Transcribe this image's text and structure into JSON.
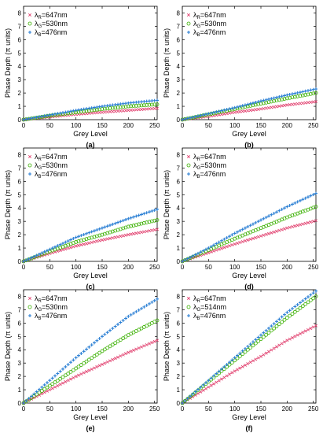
{
  "colors": {
    "red": "#e03a6a",
    "green": "#3ab000",
    "blue": "#2a7fd4"
  },
  "chart_data": [
    {
      "type": "scatter",
      "panel_label": "(a)",
      "xlabel": "Grey Level",
      "ylabel": "Phase Depth (π units)",
      "xlim": [
        0,
        255
      ],
      "ylim": [
        0,
        8.5
      ],
      "xticks": [
        0,
        50,
        100,
        150,
        200,
        250
      ],
      "yticks": [
        0,
        1,
        2,
        3,
        4,
        5,
        6,
        7,
        8
      ],
      "legend": "top-left",
      "series": [
        {
          "label_html": "λ<sub>R</sub>=647nm",
          "lambda": "λ",
          "sub": "R",
          "rest": "=647nm",
          "marker": "x",
          "color": "#e03a6a",
          "x": [
            0,
            50,
            100,
            150,
            200,
            255
          ],
          "y": [
            0,
            0.2,
            0.4,
            0.55,
            0.7,
            0.85
          ]
        },
        {
          "lambda": "λ",
          "sub": "G",
          "rest": "=530nm",
          "marker": "o",
          "color": "#3ab000",
          "x": [
            0,
            50,
            100,
            150,
            200,
            255
          ],
          "y": [
            0,
            0.3,
            0.55,
            0.8,
            1.0,
            1.15
          ]
        },
        {
          "lambda": "λ",
          "sub": "B",
          "rest": "=476nm",
          "marker": "+",
          "color": "#2a7fd4",
          "x": [
            0,
            50,
            100,
            150,
            200,
            255
          ],
          "y": [
            0,
            0.35,
            0.7,
            1.0,
            1.25,
            1.45
          ]
        }
      ]
    },
    {
      "type": "scatter",
      "panel_label": "(b)",
      "xlabel": "Grey Level",
      "ylabel": "Phase Depth (π units)",
      "xlim": [
        0,
        255
      ],
      "ylim": [
        0,
        8.5
      ],
      "xticks": [
        0,
        50,
        100,
        150,
        200,
        250
      ],
      "yticks": [
        0,
        1,
        2,
        3,
        4,
        5,
        6,
        7,
        8
      ],
      "legend": "top-left",
      "series": [
        {
          "lambda": "λ",
          "sub": "R",
          "rest": "=647nm",
          "marker": "x",
          "color": "#e03a6a",
          "x": [
            0,
            50,
            100,
            150,
            200,
            255
          ],
          "y": [
            0,
            0.25,
            0.55,
            0.8,
            1.1,
            1.35
          ]
        },
        {
          "lambda": "λ",
          "sub": "G",
          "rest": "=530nm",
          "marker": "o",
          "color": "#3ab000",
          "x": [
            0,
            50,
            100,
            150,
            200,
            255
          ],
          "y": [
            0,
            0.4,
            0.8,
            1.2,
            1.6,
            2.0
          ]
        },
        {
          "lambda": "λ",
          "sub": "B",
          "rest": "=476nm",
          "marker": "+",
          "color": "#2a7fd4",
          "x": [
            0,
            50,
            100,
            150,
            200,
            255
          ],
          "y": [
            0,
            0.45,
            0.9,
            1.4,
            1.85,
            2.3
          ]
        }
      ]
    },
    {
      "type": "scatter",
      "panel_label": "(c)",
      "xlabel": "Grey Level",
      "ylabel": "Phase Depth (π units)",
      "xlim": [
        0,
        255
      ],
      "ylim": [
        0,
        8.5
      ],
      "xticks": [
        0,
        50,
        100,
        150,
        200,
        250
      ],
      "yticks": [
        0,
        1,
        2,
        3,
        4,
        5,
        6,
        7,
        8
      ],
      "legend": "top-left",
      "series": [
        {
          "lambda": "λ",
          "sub": "R",
          "rest": "=647nm",
          "marker": "x",
          "color": "#e03a6a",
          "x": [
            0,
            50,
            100,
            150,
            200,
            255
          ],
          "y": [
            0,
            0.6,
            1.15,
            1.6,
            2.0,
            2.4
          ]
        },
        {
          "lambda": "λ",
          "sub": "G",
          "rest": "=530nm",
          "marker": "o",
          "color": "#3ab000",
          "x": [
            0,
            50,
            100,
            150,
            200,
            255
          ],
          "y": [
            0,
            0.75,
            1.45,
            2.0,
            2.6,
            3.1
          ]
        },
        {
          "lambda": "λ",
          "sub": "B",
          "rest": "=476nm",
          "marker": "+",
          "color": "#2a7fd4",
          "x": [
            0,
            50,
            100,
            150,
            200,
            255
          ],
          "y": [
            0,
            0.9,
            1.8,
            2.5,
            3.2,
            3.9
          ]
        }
      ]
    },
    {
      "type": "scatter",
      "panel_label": "(d)",
      "xlabel": "Grey Level",
      "ylabel": "Phase Depth (π units)",
      "xlim": [
        0,
        255
      ],
      "ylim": [
        0,
        8.5
      ],
      "xticks": [
        0,
        50,
        100,
        150,
        200,
        250
      ],
      "yticks": [
        0,
        1,
        2,
        3,
        4,
        5,
        6,
        7,
        8
      ],
      "legend": "top-left",
      "series": [
        {
          "lambda": "λ",
          "sub": "R",
          "rest": "=647nm",
          "marker": "x",
          "color": "#e03a6a",
          "x": [
            0,
            50,
            100,
            150,
            200,
            255
          ],
          "y": [
            0,
            0.65,
            1.3,
            1.9,
            2.5,
            3.05
          ]
        },
        {
          "lambda": "λ",
          "sub": "G",
          "rest": "=530nm",
          "marker": "o",
          "color": "#3ab000",
          "x": [
            0,
            50,
            100,
            150,
            200,
            255
          ],
          "y": [
            0,
            0.85,
            1.7,
            2.5,
            3.3,
            4.1
          ]
        },
        {
          "lambda": "λ",
          "sub": "B",
          "rest": "=476nm",
          "marker": "+",
          "color": "#2a7fd4",
          "x": [
            0,
            50,
            100,
            150,
            200,
            255
          ],
          "y": [
            0,
            1.0,
            2.1,
            3.1,
            4.1,
            5.1
          ]
        }
      ]
    },
    {
      "type": "scatter",
      "panel_label": "(e)",
      "xlabel": "Grey Level",
      "ylabel": "Phase Depth (π units)",
      "xlim": [
        0,
        255
      ],
      "ylim": [
        0,
        8.5
      ],
      "xticks": [
        0,
        50,
        100,
        150,
        200,
        250
      ],
      "yticks": [
        0,
        1,
        2,
        3,
        4,
        5,
        6,
        7,
        8
      ],
      "legend": "top-left",
      "series": [
        {
          "lambda": "λ",
          "sub": "R",
          "rest": "=647nm",
          "marker": "x",
          "color": "#e03a6a",
          "x": [
            0,
            50,
            100,
            150,
            200,
            255
          ],
          "y": [
            0,
            1.0,
            2.0,
            2.9,
            3.8,
            4.7
          ]
        },
        {
          "lambda": "λ",
          "sub": "G",
          "rest": "=530nm",
          "marker": "o",
          "color": "#3ab000",
          "x": [
            0,
            50,
            100,
            150,
            200,
            255
          ],
          "y": [
            0,
            1.3,
            2.6,
            3.9,
            5.1,
            6.2
          ]
        },
        {
          "lambda": "λ",
          "sub": "B",
          "rest": "=476nm",
          "marker": "+",
          "color": "#2a7fd4",
          "x": [
            0,
            50,
            100,
            150,
            200,
            255
          ],
          "y": [
            0,
            1.7,
            3.4,
            5.0,
            6.5,
            7.8
          ]
        }
      ]
    },
    {
      "type": "scatter",
      "panel_label": "(f)",
      "xlabel": "Grey Level",
      "ylabel": "Phase Depth (π units)",
      "xlim": [
        0,
        255
      ],
      "ylim": [
        0,
        8.5
      ],
      "xticks": [
        0,
        50,
        100,
        150,
        200,
        250
      ],
      "yticks": [
        0,
        1,
        2,
        3,
        4,
        5,
        6,
        7,
        8
      ],
      "legend": "top-left",
      "series": [
        {
          "lambda": "λ",
          "sub": "R",
          "rest": "=647nm",
          "marker": "x",
          "color": "#e03a6a",
          "x": [
            0,
            50,
            100,
            150,
            200,
            255
          ],
          "y": [
            0,
            1.2,
            2.4,
            3.5,
            4.7,
            5.8
          ]
        },
        {
          "lambda": "λ",
          "sub": "G",
          "rest": "=514nm",
          "marker": "o",
          "color": "#3ab000",
          "x": [
            0,
            50,
            100,
            150,
            200,
            255
          ],
          "y": [
            0,
            1.6,
            3.2,
            4.8,
            6.4,
            8.0
          ]
        },
        {
          "lambda": "λ",
          "sub": "B",
          "rest": "=476nm",
          "marker": "+",
          "color": "#2a7fd4",
          "x": [
            0,
            50,
            100,
            150,
            200,
            255
          ],
          "y": [
            0,
            1.7,
            3.4,
            5.1,
            6.8,
            8.4
          ]
        }
      ]
    }
  ]
}
